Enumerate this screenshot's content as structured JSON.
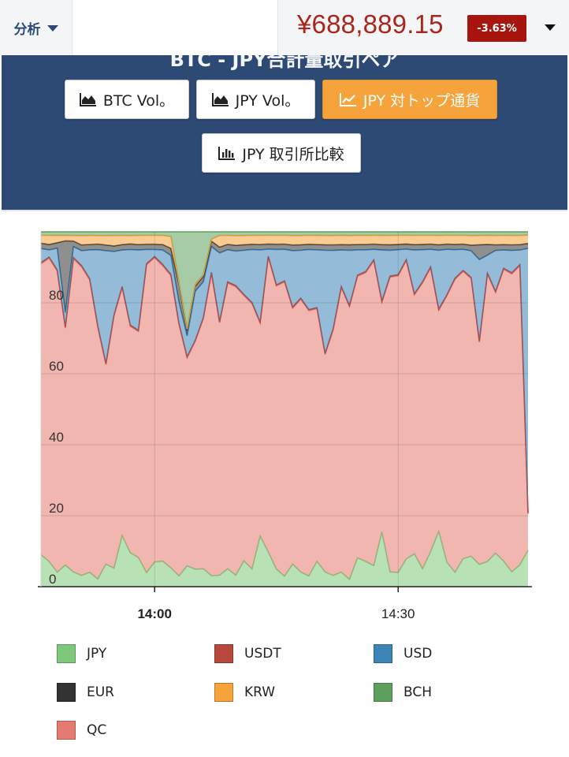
{
  "topbar": {
    "menu_label": "分析",
    "price": "¥688,889.15",
    "change": "-3.63%",
    "colors": {
      "price": "#a8271c",
      "badge": "#a8150f"
    }
  },
  "header": {
    "title": "BTC - JPY合計量取引ペア",
    "buttons": [
      {
        "label": "BTC Vol。",
        "icon": "area-chart-icon",
        "active": false
      },
      {
        "label": "JPY Vol。",
        "icon": "area-chart-icon",
        "active": false
      },
      {
        "label": "JPY 対トップ通貨",
        "icon": "line-chart-icon",
        "active": true
      },
      {
        "label": "JPY 取引所比較",
        "icon": "bar-chart-icon",
        "active": false
      }
    ]
  },
  "chart_data": {
    "type": "area",
    "stacked": true,
    "normalized_percent": true,
    "ylim": [
      0,
      100
    ],
    "yticks": [
      "0",
      "20",
      "40",
      "60",
      "80"
    ],
    "xlim": [
      0,
      60
    ],
    "xticks": [
      {
        "x": 14,
        "label": "14:00",
        "bold": true
      },
      {
        "x": 44,
        "label": "14:30",
        "bold": false
      }
    ],
    "x": [
      0,
      1,
      2,
      3,
      4,
      5,
      6,
      7,
      8,
      9,
      10,
      11,
      12,
      13,
      14,
      15,
      16,
      17,
      18,
      19,
      20,
      21,
      22,
      23,
      24,
      25,
      26,
      27,
      28,
      29,
      30,
      31,
      32,
      33,
      34,
      35,
      36,
      37,
      38,
      39,
      40,
      41,
      42,
      43,
      44,
      45,
      46,
      47,
      48,
      49,
      50,
      51,
      52,
      53,
      54,
      55,
      56,
      57,
      58,
      59,
      60
    ],
    "series": [
      {
        "name": "JPY",
        "color": "#7dc87a",
        "values": [
          9,
          7,
          4,
          6,
          4,
          3,
          4,
          2,
          6,
          5,
          14,
          9,
          8,
          4,
          7,
          7,
          4,
          3,
          6,
          5,
          5,
          3,
          3,
          5,
          3,
          7,
          5,
          14,
          10,
          5,
          3,
          6,
          4,
          3,
          7,
          4,
          3,
          4,
          2,
          8,
          7,
          6,
          15,
          4,
          4,
          8,
          9,
          5,
          10,
          15,
          7,
          4,
          8,
          8,
          6,
          7,
          9,
          7,
          4,
          6,
          11
        ]
      },
      {
        "name": "QC",
        "color": "#e57a70",
        "values": [
          82,
          84,
          83,
          66,
          85,
          82,
          81,
          66,
          53,
          68,
          68,
          60,
          62,
          87,
          86,
          81,
          62,
          70,
          60,
          65,
          70,
          82,
          66,
          80,
          75,
          72,
          75,
          59,
          85,
          80,
          84,
          68,
          74,
          75,
          70,
          59,
          66,
          78,
          74,
          78,
          80,
          87,
          63,
          80,
          83,
          86,
          71,
          80,
          81,
          60,
          76,
          82,
          82,
          73,
          60,
          80,
          70,
          80,
          80,
          82,
          11
        ]
      },
      {
        "name": "USDT",
        "color": "#b8473c",
        "values": [
          0.3,
          0.3,
          0.3,
          0.3,
          0.3,
          0.3,
          0.3,
          0.3,
          0.3,
          0.3,
          0.3,
          0.3,
          0.3,
          0.3,
          0.3,
          0.3,
          0.3,
          0.3,
          0.3,
          0.3,
          0.3,
          0.3,
          0.3,
          0.3,
          0.3,
          0.3,
          0.3,
          0.3,
          0.3,
          0.3,
          0.3,
          0.3,
          0.3,
          0.3,
          0.3,
          0.3,
          0.3,
          0.3,
          0.3,
          0.3,
          0.3,
          0.3,
          0.3,
          0.3,
          0.3,
          0.3,
          0.3,
          0.3,
          0.3,
          0.3,
          0.3,
          0.3,
          0.3,
          0.3,
          0.3,
          0.3,
          0.3,
          0.3,
          0.3,
          0.3,
          0.3
        ]
      },
      {
        "name": "USD",
        "color": "#3d84b8",
        "values": [
          4,
          2,
          6,
          4,
          3,
          4,
          8,
          20,
          30,
          17,
          10,
          20,
          22,
          4,
          2,
          4,
          4,
          6,
          6,
          14,
          10,
          7,
          18,
          9,
          9,
          12,
          15,
          20,
          2,
          10,
          9,
          15,
          13,
          17,
          16,
          28,
          21,
          10,
          15,
          7,
          6,
          3,
          14,
          7,
          7,
          3,
          12,
          9,
          5,
          16,
          13,
          8,
          6,
          7,
          22,
          5,
          11,
          5,
          6,
          4,
          80
        ]
      },
      {
        "name": "EUR",
        "color": "#333333",
        "values": [
          1.5,
          1.5,
          1.5,
          20,
          1.5,
          1.5,
          1.5,
          1.5,
          1.5,
          1.5,
          1.5,
          1.5,
          1.5,
          1.5,
          1.5,
          1.5,
          1.5,
          5,
          1.5,
          1.5,
          1.5,
          1.5,
          1.5,
          1.5,
          1.5,
          1.5,
          1.5,
          1.5,
          1.5,
          1.5,
          1.5,
          1.5,
          1.5,
          1.5,
          1.5,
          1.5,
          1.5,
          1.5,
          1.5,
          1.5,
          1.5,
          1.5,
          1.5,
          1.5,
          1.5,
          1.5,
          1.5,
          1.5,
          1.5,
          1.5,
          1.5,
          1.5,
          1.5,
          1.5,
          4,
          3,
          1.5,
          1.5,
          1.5,
          1.5,
          1.5
        ]
      },
      {
        "name": "KRW",
        "color": "#f5a33a",
        "values": [
          2.2,
          2.5,
          2,
          1.5,
          1.5,
          2.5,
          2.5,
          2.2,
          2.5,
          2.8,
          2.5,
          2.2,
          2.5,
          2.5,
          2.5,
          2.5,
          2.5,
          0.5,
          0.5,
          0.5,
          0.5,
          0.5,
          3,
          2.5,
          2.5,
          2.5,
          2.5,
          2.5,
          2.5,
          2.5,
          2.5,
          2.5,
          2.5,
          2.5,
          2.5,
          2.5,
          2.5,
          2.5,
          2.5,
          2.5,
          2.5,
          2.5,
          2.5,
          2.5,
          2.5,
          2.5,
          2.5,
          2.5,
          2.5,
          2.5,
          2.5,
          2.5,
          2.5,
          2.5,
          2.5,
          2.5,
          2.5,
          2.5,
          2.5,
          2.5,
          2.5
        ]
      },
      {
        "name": "BCH",
        "color": "#5da05d",
        "values": [
          1,
          1,
          1,
          1,
          1,
          1,
          1,
          1,
          1,
          1,
          1,
          1,
          1,
          1,
          1,
          1,
          1,
          14,
          28,
          15,
          12,
          2,
          1,
          1,
          1,
          1,
          1,
          1,
          1,
          1,
          1,
          1,
          1,
          1,
          1,
          1,
          1,
          1,
          1,
          1,
          1,
          1,
          1,
          1,
          1,
          1,
          1,
          1,
          1,
          1,
          1,
          1,
          1,
          1,
          1,
          1,
          1,
          1,
          1,
          1,
          1
        ]
      }
    ]
  },
  "legend": [
    {
      "name": "JPY",
      "color": "#7dc87a"
    },
    {
      "name": "USDT",
      "color": "#b8473c"
    },
    {
      "name": "USD",
      "color": "#3d84b8"
    },
    {
      "name": "EUR",
      "color": "#333333"
    },
    {
      "name": "KRW",
      "color": "#f5a33a"
    },
    {
      "name": "BCH",
      "color": "#5da05d"
    },
    {
      "name": "QC",
      "color": "#e57a70"
    }
  ]
}
